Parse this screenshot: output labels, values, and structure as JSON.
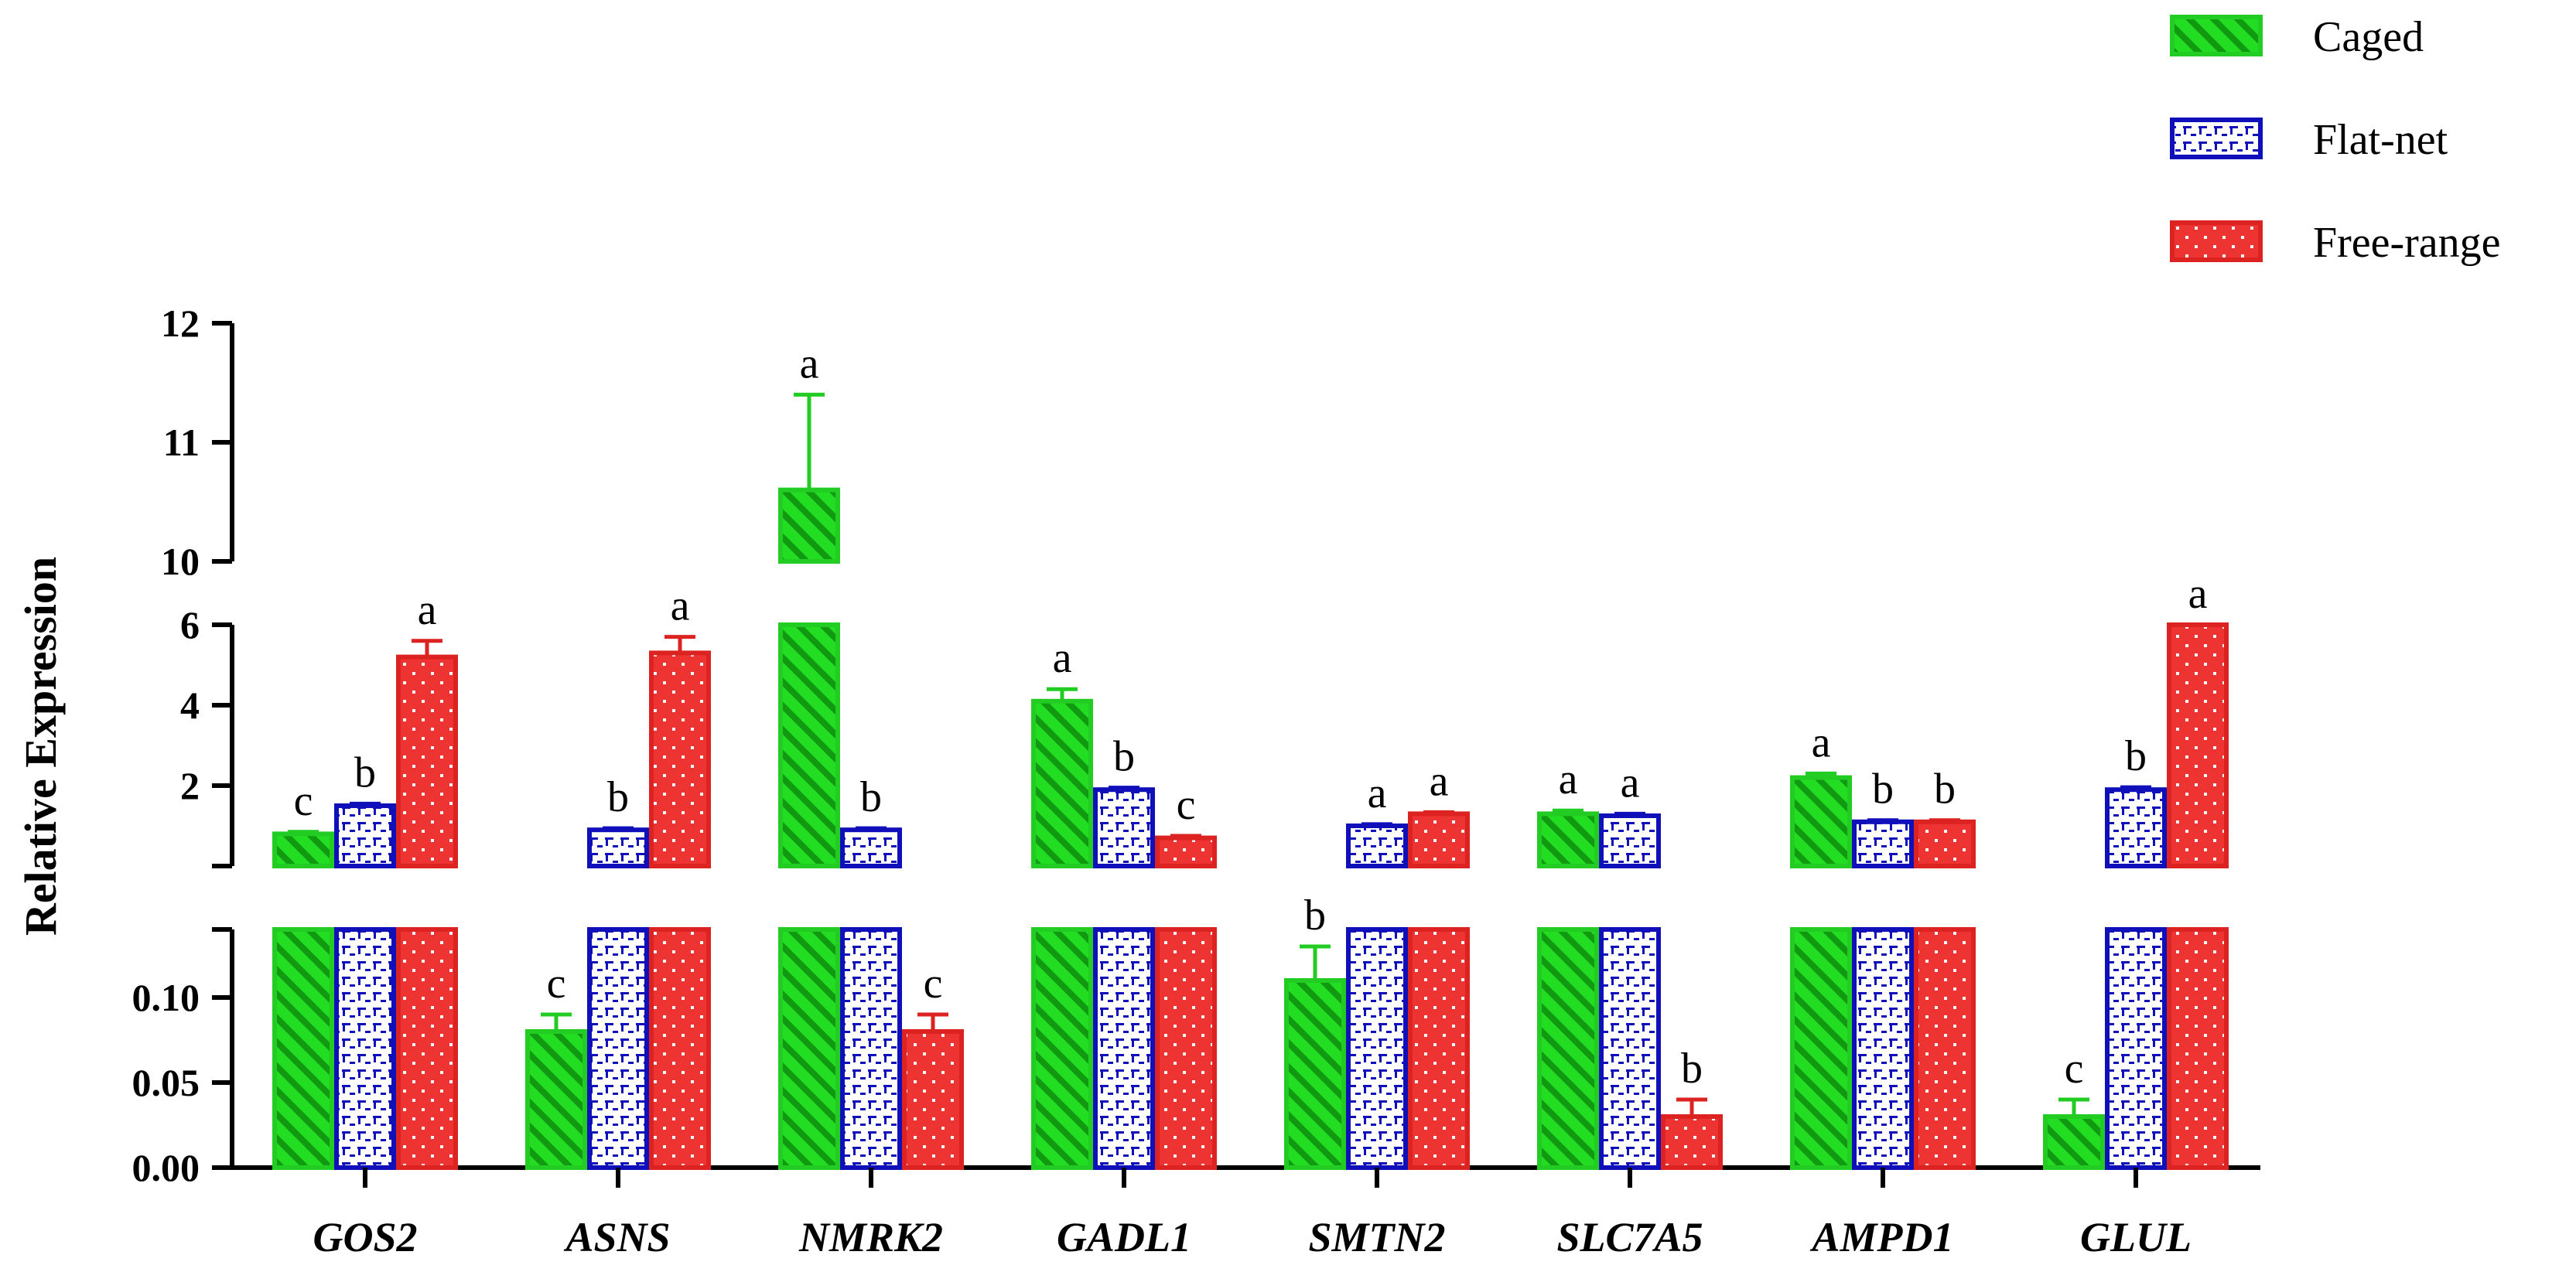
{
  "chart_data": {
    "type": "bar",
    "title": "",
    "xlabel": "",
    "ylabel": "Relative Expression",
    "categories": [
      "GOS2",
      "ASNS",
      "NMRK2",
      "GADL1",
      "SMTN2",
      "SLC7A5",
      "AMPD1",
      "GLUL"
    ],
    "series": [
      {
        "name": "Caged",
        "color": "#22dd22",
        "edge": "#22cc22",
        "pattern": "diagonal-hatch",
        "values": [
          0.8,
          0.08,
          10.6,
          4.1,
          0.11,
          1.3,
          2.2,
          0.03
        ],
        "errors": [
          0.05,
          0.01,
          0.8,
          0.3,
          0.02,
          0.08,
          0.1,
          0.01
        ],
        "sig": [
          "c",
          "c",
          "a",
          "a",
          "b",
          "a",
          "a",
          "c"
        ]
      },
      {
        "name": "Flat-net",
        "color": "#ffffff",
        "edge": "#1010bb",
        "pattern": "blue-dash",
        "values": [
          1.5,
          0.9,
          0.9,
          1.9,
          1.0,
          1.25,
          1.1,
          1.9
        ],
        "errors": [
          0.05,
          0.04,
          0.04,
          0.05,
          0.04,
          0.05,
          0.04,
          0.06
        ],
        "sig": [
          "b",
          "b",
          "b",
          "b",
          "a",
          "a",
          "b",
          "b"
        ]
      },
      {
        "name": "Free-range",
        "color": "#ee3333",
        "edge": "#dd2222",
        "pattern": "white-dots",
        "values": [
          5.2,
          5.3,
          0.08,
          0.7,
          1.3,
          0.03,
          1.1,
          6.0
        ],
        "errors": [
          0.4,
          0.4,
          0.01,
          0.05,
          0.04,
          0.01,
          0.04,
          0.0
        ],
        "sig": [
          "a",
          "a",
          "c",
          "c",
          "a",
          "b",
          "b",
          "a"
        ]
      }
    ],
    "axis_segments": [
      {
        "range": [
          0,
          0.14
        ],
        "ticks": [
          0.0,
          0.05,
          0.1
        ],
        "tick_labels": [
          "0.00",
          "0.05",
          "0.10"
        ]
      },
      {
        "range": [
          0,
          6
        ],
        "ticks": [
          2,
          4,
          6
        ],
        "tick_labels": [
          "2",
          "4",
          "6"
        ]
      },
      {
        "range": [
          10,
          12
        ],
        "ticks": [
          10,
          11,
          12
        ],
        "tick_labels": [
          "10",
          "11",
          "12"
        ]
      }
    ],
    "legend_position": "top-right",
    "grid": false
  }
}
